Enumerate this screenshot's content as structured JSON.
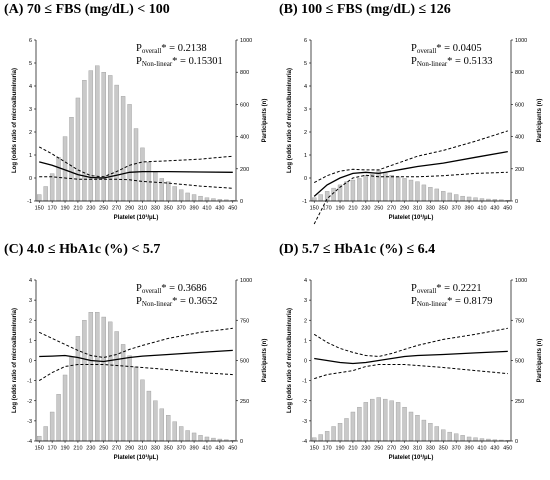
{
  "chart_data": [
    {
      "type": "bar",
      "panel_label": "(A) 70 ≤ FBS (mg/dL) < 100",
      "p_overall": "0.2138",
      "p_nonlinear": "0.15301",
      "p_label_prefix": "P",
      "p_overall_sub": "overall",
      "p_nonlinear_sub": "Non-linear",
      "p_marker": "* = ",
      "xlabel": "Platelet (10³/μL)",
      "ylabel_left": "Log (odds ratio of microalbuminuria)",
      "ylabel_right": "Participants (n)",
      "ylim_left": [
        -1,
        6
      ],
      "yticks_left": [
        -1,
        0,
        1,
        2,
        3,
        4,
        5,
        6
      ],
      "ylim_right": [
        0,
        1000
      ],
      "yticks_right": [
        0,
        200,
        400,
        600,
        800,
        1000
      ],
      "x_ticks": [
        "150",
        "170",
        "190",
        "210",
        "230",
        "250",
        "270",
        "290",
        "310",
        "330",
        "350",
        "370",
        "390",
        "410",
        "430",
        "450"
      ],
      "bars_x": [
        150,
        160,
        170,
        180,
        190,
        200,
        210,
        220,
        230,
        240,
        250,
        260,
        270,
        280,
        290,
        300,
        310,
        320,
        330,
        340,
        350,
        360,
        370,
        380,
        390,
        400,
        410,
        420,
        430,
        440,
        450
      ],
      "bars_n": [
        40,
        90,
        170,
        270,
        400,
        520,
        640,
        750,
        810,
        840,
        800,
        780,
        720,
        650,
        600,
        450,
        330,
        240,
        180,
        140,
        120,
        90,
        70,
        50,
        40,
        30,
        20,
        15,
        10,
        8,
        5
      ],
      "curve_x": [
        150,
        170,
        190,
        210,
        230,
        250,
        270,
        290,
        310,
        350,
        400,
        450
      ],
      "curve": [
        0.7,
        0.55,
        0.35,
        0.15,
        0.02,
        0.0,
        0.12,
        0.25,
        0.28,
        0.28,
        0.26,
        0.25
      ],
      "upper": [
        1.35,
        1.05,
        0.7,
        0.35,
        0.1,
        0.05,
        0.28,
        0.55,
        0.7,
        0.75,
        0.82,
        0.95
      ],
      "lower": [
        0.05,
        0.05,
        0.0,
        -0.05,
        -0.05,
        -0.05,
        -0.05,
        -0.08,
        -0.15,
        -0.22,
        -0.35,
        -0.45
      ]
    },
    {
      "type": "bar",
      "panel_label": "(B) 100 ≤ FBS (mg/dL) ≤ 126",
      "p_overall": "0.0405",
      "p_nonlinear": "0.5133",
      "p_label_prefix": "P",
      "p_overall_sub": "overall",
      "p_nonlinear_sub": "Non-linear",
      "p_marker": "* = ",
      "xlabel": "Platelet (10³/μL)",
      "ylabel_left": "Log (odds ratio of microalbuminuria)",
      "ylabel_right": "Participants (n)",
      "ylim_left": [
        -1,
        6
      ],
      "yticks_left": [
        -1,
        0,
        1,
        2,
        3,
        4,
        5,
        6
      ],
      "ylim_right": [
        0,
        1000
      ],
      "yticks_right": [
        0,
        200,
        400,
        600,
        800,
        1000
      ],
      "x_ticks": [
        "150",
        "170",
        "190",
        "210",
        "230",
        "250",
        "270",
        "290",
        "310",
        "330",
        "350",
        "370",
        "390",
        "410",
        "430",
        "450"
      ],
      "bars_x": [
        150,
        160,
        170,
        180,
        190,
        200,
        210,
        220,
        230,
        240,
        250,
        260,
        270,
        280,
        290,
        300,
        310,
        320,
        330,
        340,
        350,
        360,
        370,
        380,
        390,
        400,
        410,
        420,
        430,
        440,
        450
      ],
      "bars_n": [
        20,
        40,
        60,
        80,
        100,
        120,
        130,
        140,
        160,
        165,
        190,
        175,
        160,
        150,
        140,
        130,
        120,
        100,
        85,
        75,
        60,
        50,
        40,
        30,
        25,
        20,
        15,
        12,
        10,
        8,
        5
      ],
      "curve_x": [
        150,
        170,
        190,
        210,
        230,
        250,
        270,
        290,
        310,
        350,
        400,
        450
      ],
      "curve": [
        -0.8,
        -0.3,
        0.0,
        0.2,
        0.25,
        0.2,
        0.3,
        0.4,
        0.5,
        0.65,
        0.9,
        1.15
      ],
      "upper": [
        -0.2,
        0.1,
        0.3,
        0.38,
        0.35,
        0.35,
        0.55,
        0.75,
        0.95,
        1.2,
        1.6,
        2.05
      ],
      "lower": [
        -2.0,
        -0.9,
        -0.4,
        0.0,
        0.12,
        0.05,
        0.05,
        0.05,
        0.05,
        0.1,
        0.2,
        0.25
      ]
    },
    {
      "type": "bar",
      "panel_label": "(C) 4.0 ≤ HbA1c (%) < 5.7",
      "p_overall": "0.3686",
      "p_nonlinear": "0.3652",
      "p_label_prefix": "P",
      "p_overall_sub": "overall",
      "p_nonlinear_sub": "Non-linear",
      "p_marker": "* = ",
      "xlabel": "Platelet (10³/μL)",
      "ylabel_left": "Log (odds ratio of microalbuminuria)",
      "ylabel_right": "Participants (n)",
      "ylim_left": [
        -4,
        4
      ],
      "yticks_left": [
        -4,
        -3,
        -2,
        -1,
        0,
        1,
        2,
        3,
        4
      ],
      "ylim_right": [
        0,
        1000
      ],
      "yticks_right": [
        0,
        250,
        500,
        750,
        1000
      ],
      "x_ticks": [
        "150",
        "170",
        "190",
        "210",
        "230",
        "250",
        "270",
        "290",
        "310",
        "330",
        "350",
        "370",
        "390",
        "410",
        "430",
        "450"
      ],
      "bars_x": [
        150,
        160,
        170,
        180,
        190,
        200,
        210,
        220,
        230,
        240,
        250,
        260,
        270,
        280,
        290,
        300,
        310,
        320,
        330,
        340,
        350,
        360,
        370,
        380,
        390,
        400,
        410,
        420,
        430,
        440,
        450
      ],
      "bars_n": [
        30,
        90,
        180,
        290,
        410,
        520,
        650,
        750,
        800,
        800,
        770,
        740,
        680,
        600,
        530,
        460,
        380,
        310,
        250,
        200,
        160,
        120,
        90,
        65,
        50,
        35,
        25,
        18,
        12,
        8,
        5
      ],
      "curve_x": [
        150,
        170,
        190,
        210,
        230,
        250,
        270,
        290,
        310,
        350,
        400,
        450
      ],
      "curve": [
        0.2,
        0.22,
        0.25,
        0.15,
        0.0,
        -0.05,
        0.05,
        0.15,
        0.22,
        0.3,
        0.4,
        0.5
      ],
      "upper": [
        1.4,
        1.1,
        0.8,
        0.5,
        0.25,
        0.15,
        0.3,
        0.55,
        0.75,
        1.1,
        1.4,
        1.6
      ],
      "lower": [
        -1.0,
        -0.6,
        -0.3,
        -0.2,
        -0.2,
        -0.2,
        -0.25,
        -0.3,
        -0.35,
        -0.45,
        -0.6,
        -0.7
      ]
    },
    {
      "type": "bar",
      "panel_label": "(D) 5.7 ≤ HbA1c (%) ≤ 6.4",
      "p_overall": "0.2221",
      "p_nonlinear": "0.8179",
      "p_label_prefix": "P",
      "p_overall_sub": "overall",
      "p_nonlinear_sub": "Non-linear",
      "p_marker": "* = ",
      "xlabel": "Platelet (10³/μL)",
      "ylabel_left": "Log (odds ratio of microalbuminuria)",
      "ylabel_right": "Participants (n)",
      "ylim_left": [
        -4,
        4
      ],
      "yticks_left": [
        -4,
        -3,
        -2,
        -1,
        0,
        1,
        2,
        3,
        4
      ],
      "ylim_right": [
        0,
        1000
      ],
      "yticks_right": [
        0,
        250,
        500,
        750,
        1000
      ],
      "x_ticks": [
        "150",
        "170",
        "190",
        "210",
        "230",
        "250",
        "270",
        "290",
        "310",
        "330",
        "350",
        "370",
        "390",
        "410",
        "430",
        "450"
      ],
      "bars_x": [
        150,
        160,
        170,
        180,
        190,
        200,
        210,
        220,
        230,
        240,
        250,
        260,
        270,
        280,
        290,
        300,
        310,
        320,
        330,
        340,
        350,
        360,
        370,
        380,
        390,
        400,
        410,
        420,
        430,
        440,
        450
      ],
      "bars_n": [
        20,
        40,
        60,
        90,
        110,
        140,
        180,
        210,
        240,
        260,
        270,
        260,
        250,
        240,
        210,
        180,
        160,
        130,
        110,
        90,
        70,
        55,
        45,
        35,
        25,
        20,
        15,
        12,
        8,
        6,
        4
      ],
      "curve_x": [
        150,
        170,
        190,
        210,
        230,
        250,
        270,
        290,
        310,
        350,
        400,
        450
      ],
      "curve": [
        0.1,
        0.0,
        -0.1,
        -0.15,
        -0.1,
        0.0,
        0.1,
        0.2,
        0.25,
        0.3,
        0.38,
        0.45
      ],
      "upper": [
        1.3,
        0.9,
        0.6,
        0.4,
        0.25,
        0.2,
        0.35,
        0.55,
        0.75,
        1.05,
        1.3,
        1.6
      ],
      "lower": [
        -0.9,
        -0.7,
        -0.6,
        -0.5,
        -0.3,
        -0.2,
        -0.2,
        -0.2,
        -0.25,
        -0.35,
        -0.5,
        -0.65
      ]
    }
  ]
}
